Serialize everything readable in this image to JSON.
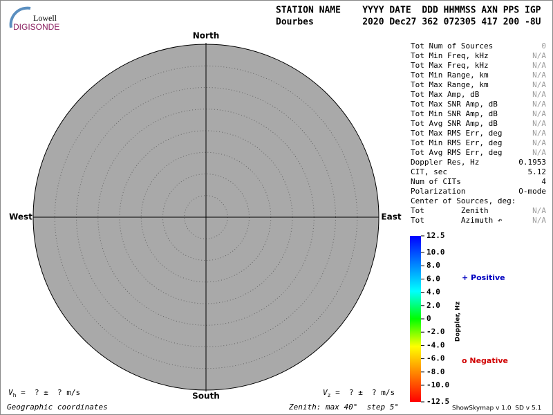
{
  "logo": {
    "top": "Lowell",
    "bottom": "DIGISONDE"
  },
  "header": {
    "line1": "STATION NAME    YYYY DATE  DDD HHMMSS AXN PPS IGP",
    "line2": "Dourbes         2020 Dec27 362 072305 417 200 -8U"
  },
  "chart_data": {
    "type": "skymap",
    "directions": {
      "north": "North",
      "south": "South",
      "west": "West",
      "east": "East"
    },
    "fill_color": "#a9a9a9",
    "rlim": [
      0,
      40
    ],
    "rticks": [
      5,
      10,
      15,
      20,
      25,
      30,
      35,
      40
    ],
    "colorbar": {
      "label": "Doppler, Hz",
      "ylim": [
        -12.5,
        12.5
      ],
      "colormap": [
        "#ff0000",
        "#ff8000",
        "#ffff00",
        "#00ff00",
        "#00ffff",
        "#0080ff",
        "#0000ff"
      ],
      "yticks": [
        12.5,
        {
          "value": 10,
          "label": "10.0"
        },
        {
          "value": 8,
          "label": "8.0"
        },
        {
          "value": 6,
          "label": "6.0"
        },
        {
          "value": 4,
          "label": "4.0"
        },
        {
          "value": 2,
          "label": "2.0"
        },
        0,
        {
          "value": -2,
          "label": "-2.0"
        },
        {
          "value": -4,
          "label": "-4.0"
        },
        {
          "value": -6,
          "label": "-6.0"
        },
        {
          "value": -8,
          "label": "-8.0"
        },
        {
          "value": -10,
          "label": "-10.0"
        },
        -12.5
      ]
    },
    "legend": [
      {
        "name": "+ Positive",
        "color": "#0000c0"
      },
      {
        "name": "o Negative",
        "color": "#d00000"
      }
    ]
  },
  "stats": [
    {
      "label": "Tot Num of Sources",
      "value": 0,
      "color": "#9a9a9a"
    },
    {
      "label": "Tot Min Freq, kHz",
      "value": "N/A",
      "color": "#9a9a9a"
    },
    {
      "label": "Tot Max Freq, kHz",
      "value": "N/A",
      "color": "#9a9a9a"
    },
    {
      "label": "Tot Min Range, km",
      "value": "N/A",
      "color": "#9a9a9a"
    },
    {
      "label": "Tot Max Range, km",
      "value": "N/A",
      "color": "#9a9a9a"
    },
    {
      "label": "Tot Max Amp, dB",
      "value": "N/A",
      "color": "#9a9a9a"
    },
    {
      "label": "Tot Max SNR Amp, dB",
      "value": "N/A",
      "color": "#9a9a9a"
    },
    {
      "label": "Tot Min SNR Amp, dB",
      "value": "N/A",
      "color": "#9a9a9a"
    },
    {
      "label": "Tot Avg SNR Amp, dB",
      "value": "N/A",
      "color": "#9a9a9a"
    },
    {
      "label": "Tot Max RMS Err, deg",
      "value": "N/A",
      "color": "#9a9a9a"
    },
    {
      "label": "Tot Min RMS Err, deg",
      "value": "N/A",
      "color": "#9a9a9a"
    },
    {
      "label": "Tot Avg RMS Err, deg",
      "value": "N/A",
      "color": "#9a9a9a"
    },
    {
      "label": "Doppler Res, Hz",
      "value": 0.1953,
      "color": "#000000"
    },
    {
      "label": "CIT, sec",
      "value": 5.12,
      "color": "#000000"
    },
    {
      "label": "Num of CITs",
      "value": 4,
      "color": "#000000"
    },
    {
      "label": "Polarization",
      "value": "O-mode",
      "color": "#000000"
    },
    {
      "label": "Center of Sources, deg:"
    },
    {
      "label": "Tot        Zenith",
      "value": "N/A",
      "color": "#9a9a9a"
    },
    {
      "label": "Tot        Azimuth ↶",
      "value": "N/A",
      "color": "#9a9a9a"
    }
  ],
  "footer": {
    "vh": {
      "symbol": "V",
      "sub": "h",
      "text": " =  ? ±  ? m/s"
    },
    "vz": {
      "symbol": "V",
      "sub": "z",
      "text": " =  ? ±  ? m/s"
    },
    "coords": "Geographic coordinates",
    "zenith": "Zenith: max 40°  step 5°",
    "version": "ShowSkymap v 1.0  SD v 5.1"
  }
}
